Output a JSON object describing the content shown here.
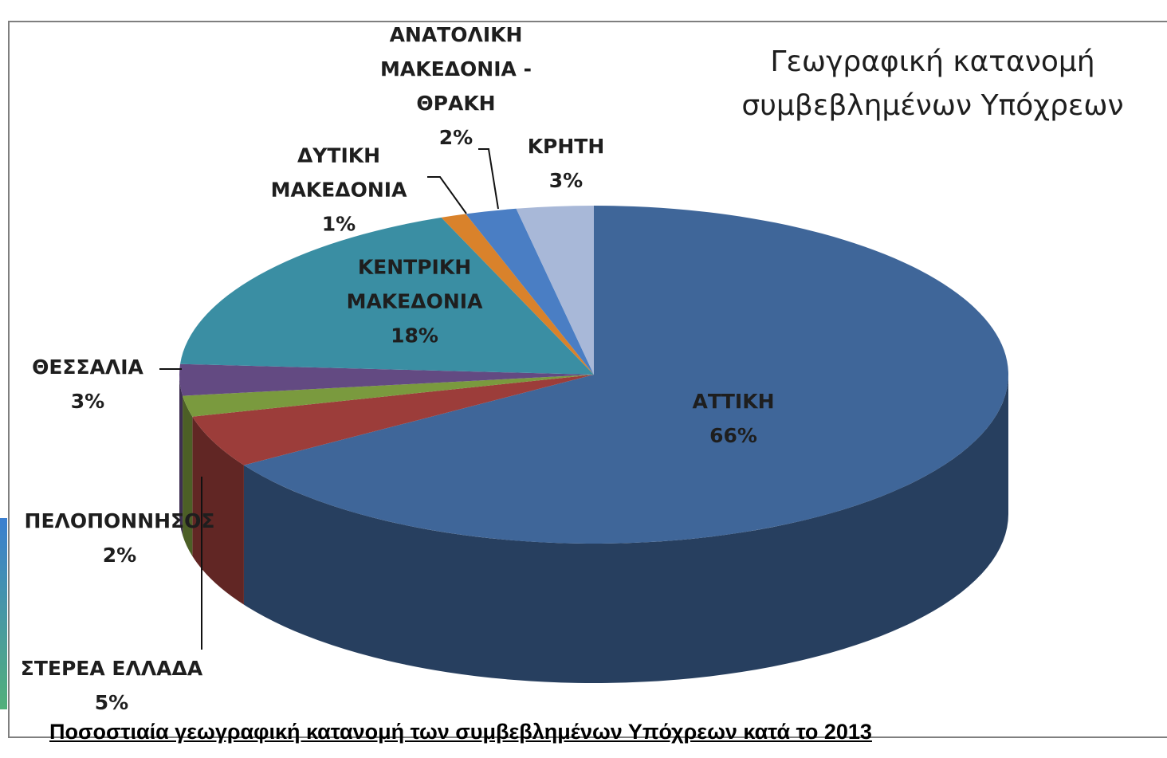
{
  "chart_data": {
    "type": "pie3d",
    "title": "Γεωγραφική κατανομή συμβεβλημένων Υπόχρεων",
    "caption": "Ποσοστιαία γεωγραφική κατανομή των συμβεβλημένων Υπόχρεων κατά το 2013",
    "categories": [
      "ΑΤΤΙΚΗ",
      "ΣΤΕΡΕΑ ΕΛΛΑΔΑ",
      "ΠΕΛΟΠΟΝΝΗΣΟΣ",
      "ΘΕΣΣΑΛΙΑ",
      "ΚΕΝΤΡΙΚΗ ΜΑΚΕΔΟΝΙΑ",
      "ΔΥΤΙΚΗ ΜΑΚΕΔΟΝΙΑ",
      "ΑΝΑΤΟΛΙΚΗ ΜΑΚΕΔΟΝΙΑ - ΘΡΑΚΗ",
      "ΚΡΗΤΗ"
    ],
    "values": [
      66,
      5,
      2,
      3,
      18,
      1,
      2,
      3
    ],
    "value_labels": [
      "66%",
      "5%",
      "2%",
      "3%",
      "18%",
      "1%",
      "2%",
      "3%"
    ],
    "colors": [
      "#3f6699",
      "#9c3d3a",
      "#7a9a3e",
      "#634a82",
      "#3a8ea3",
      "#d9822b",
      "#4a7ec4",
      "#a8b8d8"
    ]
  }
}
